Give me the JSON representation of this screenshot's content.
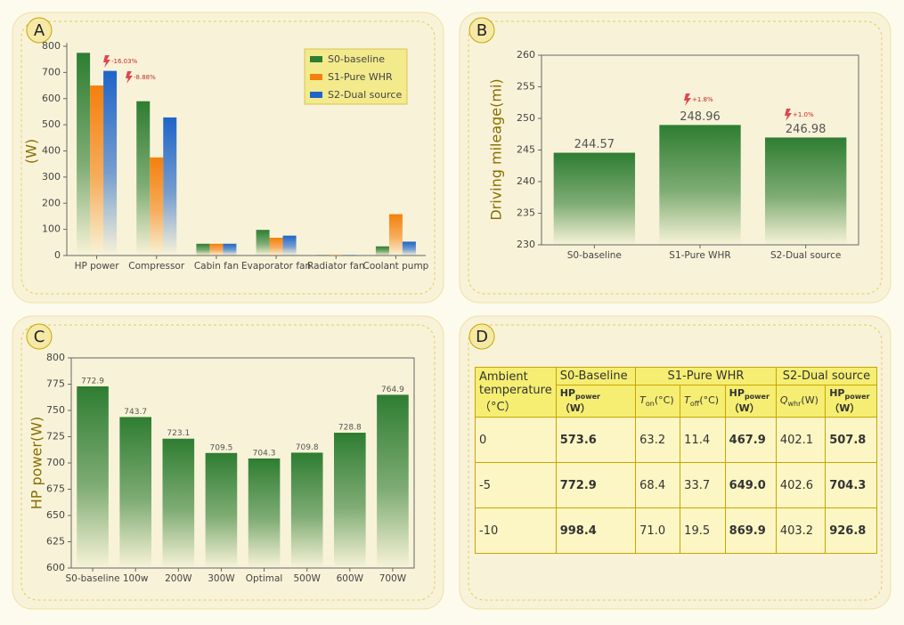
{
  "chart_data": [
    {
      "type": "bar",
      "label": "A",
      "ylabel": "(W)",
      "categories": [
        "HP power",
        "Compressor",
        "Cabin fan",
        "Evaporator fan",
        "Radiator fan",
        "Coolant pump"
      ],
      "series": [
        {
          "name": "S0-baseline",
          "color": "#2e7d32",
          "values": [
            775,
            590,
            45,
            98,
            2,
            35
          ]
        },
        {
          "name": "S1-Pure WHR",
          "color": "#f57f0c",
          "values": [
            650,
            375,
            45,
            68,
            2,
            158
          ]
        },
        {
          "name": "S2-Dual source",
          "color": "#1f64c8",
          "values": [
            706,
            528,
            45,
            76,
            2,
            53
          ]
        }
      ],
      "ylim": [
        0,
        800
      ],
      "yticks": [
        0,
        100,
        200,
        300,
        400,
        500,
        600,
        700,
        800
      ],
      "legend": "upper right",
      "annotations": [
        "-16.03%",
        "-8.88%"
      ]
    },
    {
      "type": "bar",
      "label": "B",
      "ylabel": "Driving mileage(mi)",
      "categories": [
        "S0-baseline",
        "S1-Pure WHR",
        "S2-Dual source"
      ],
      "values": [
        244.57,
        248.96,
        246.98
      ],
      "color": "#2e7d32",
      "ylim": [
        230,
        260
      ],
      "yticks": [
        230,
        235,
        240,
        245,
        250,
        255,
        260
      ],
      "annotations": [
        "+1.8%",
        "+1.0%"
      ]
    },
    {
      "type": "bar",
      "label": "C",
      "ylabel": "HP power(W)",
      "categories": [
        "S0-baseline",
        "100w",
        "200W",
        "300W",
        "Optimal",
        "500W",
        "600W",
        "700W"
      ],
      "values": [
        772.9,
        743.7,
        723.1,
        709.5,
        704.3,
        709.8,
        728.8,
        764.9
      ],
      "color": "#2e7d32",
      "ylim": [
        600,
        800
      ],
      "yticks": [
        600,
        625,
        650,
        675,
        700,
        725,
        750,
        775,
        800
      ]
    }
  ],
  "table": {
    "label": "D",
    "header": [
      "Ambient temperature（°C）",
      "S0-Baseline",
      "S1-Pure WHR",
      "S2-Dual source"
    ],
    "subheader": [
      {
        "main": "HP",
        "sub": "power",
        "unit": "（W）"
      },
      {
        "main": "T",
        "sub": "on",
        "unit": "(°C)"
      },
      {
        "main": "T",
        "sub": "off",
        "unit": "(°C)"
      },
      {
        "main": "HP",
        "sub": "power",
        "unit": "（W）"
      },
      {
        "main": "Q",
        "sub": "whr",
        "unit": "(W)"
      },
      {
        "main": "HP",
        "sub": "power",
        "unit": "（W）"
      }
    ],
    "rows": [
      [
        "0",
        "573.6",
        "63.2",
        "11.4",
        "467.9",
        "402.1",
        "507.8"
      ],
      [
        "-5",
        "772.9",
        "68.4",
        "33.7",
        "649.0",
        "402.6",
        "704.3"
      ],
      [
        "-10",
        "998.4",
        "71.0",
        "19.5",
        "869.9",
        "403.2",
        "926.8"
      ]
    ]
  }
}
